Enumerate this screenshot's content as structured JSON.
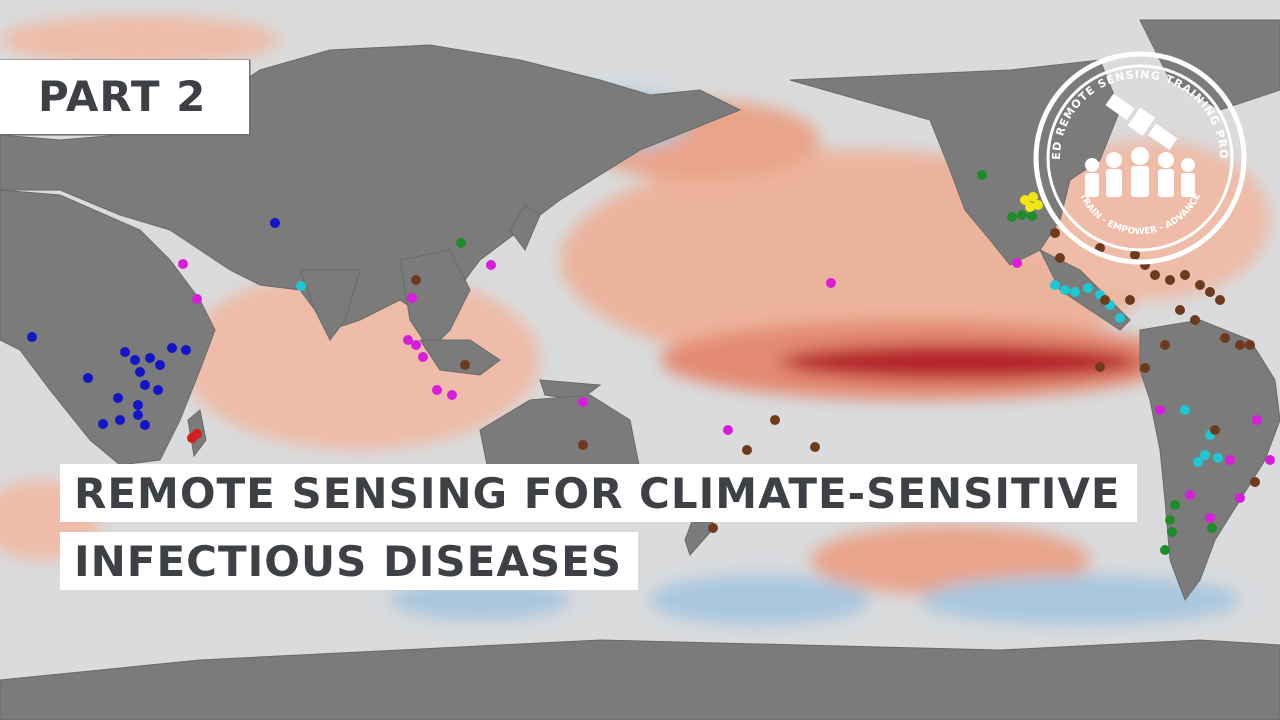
{
  "badge": {
    "label": "PART 2"
  },
  "title": {
    "line1": "REMOTE SENSING FOR CLIMATE-SENSITIVE",
    "line2": "INFECTIOUS DISEASES"
  },
  "logo": {
    "ring_text": "APPLIED REMOTE SENSING TRAINING PROGRAM",
    "motto": "TRAIN - EMPOWER - ADVANCE"
  },
  "colors": {
    "land": "#7b7b7b",
    "ocean": "#d9dbdd",
    "warm": "#e9a48b",
    "hot": "#b5202a",
    "cool": "#a9c6de",
    "text": "#3d4145"
  },
  "markers": {
    "blue": "#1414c8",
    "magenta": "#d81ed8",
    "cyan": "#1ec8d2",
    "brown": "#6e3a1e",
    "green": "#1e8c28",
    "yellow": "#f0e614",
    "red": "#d21e1e"
  }
}
